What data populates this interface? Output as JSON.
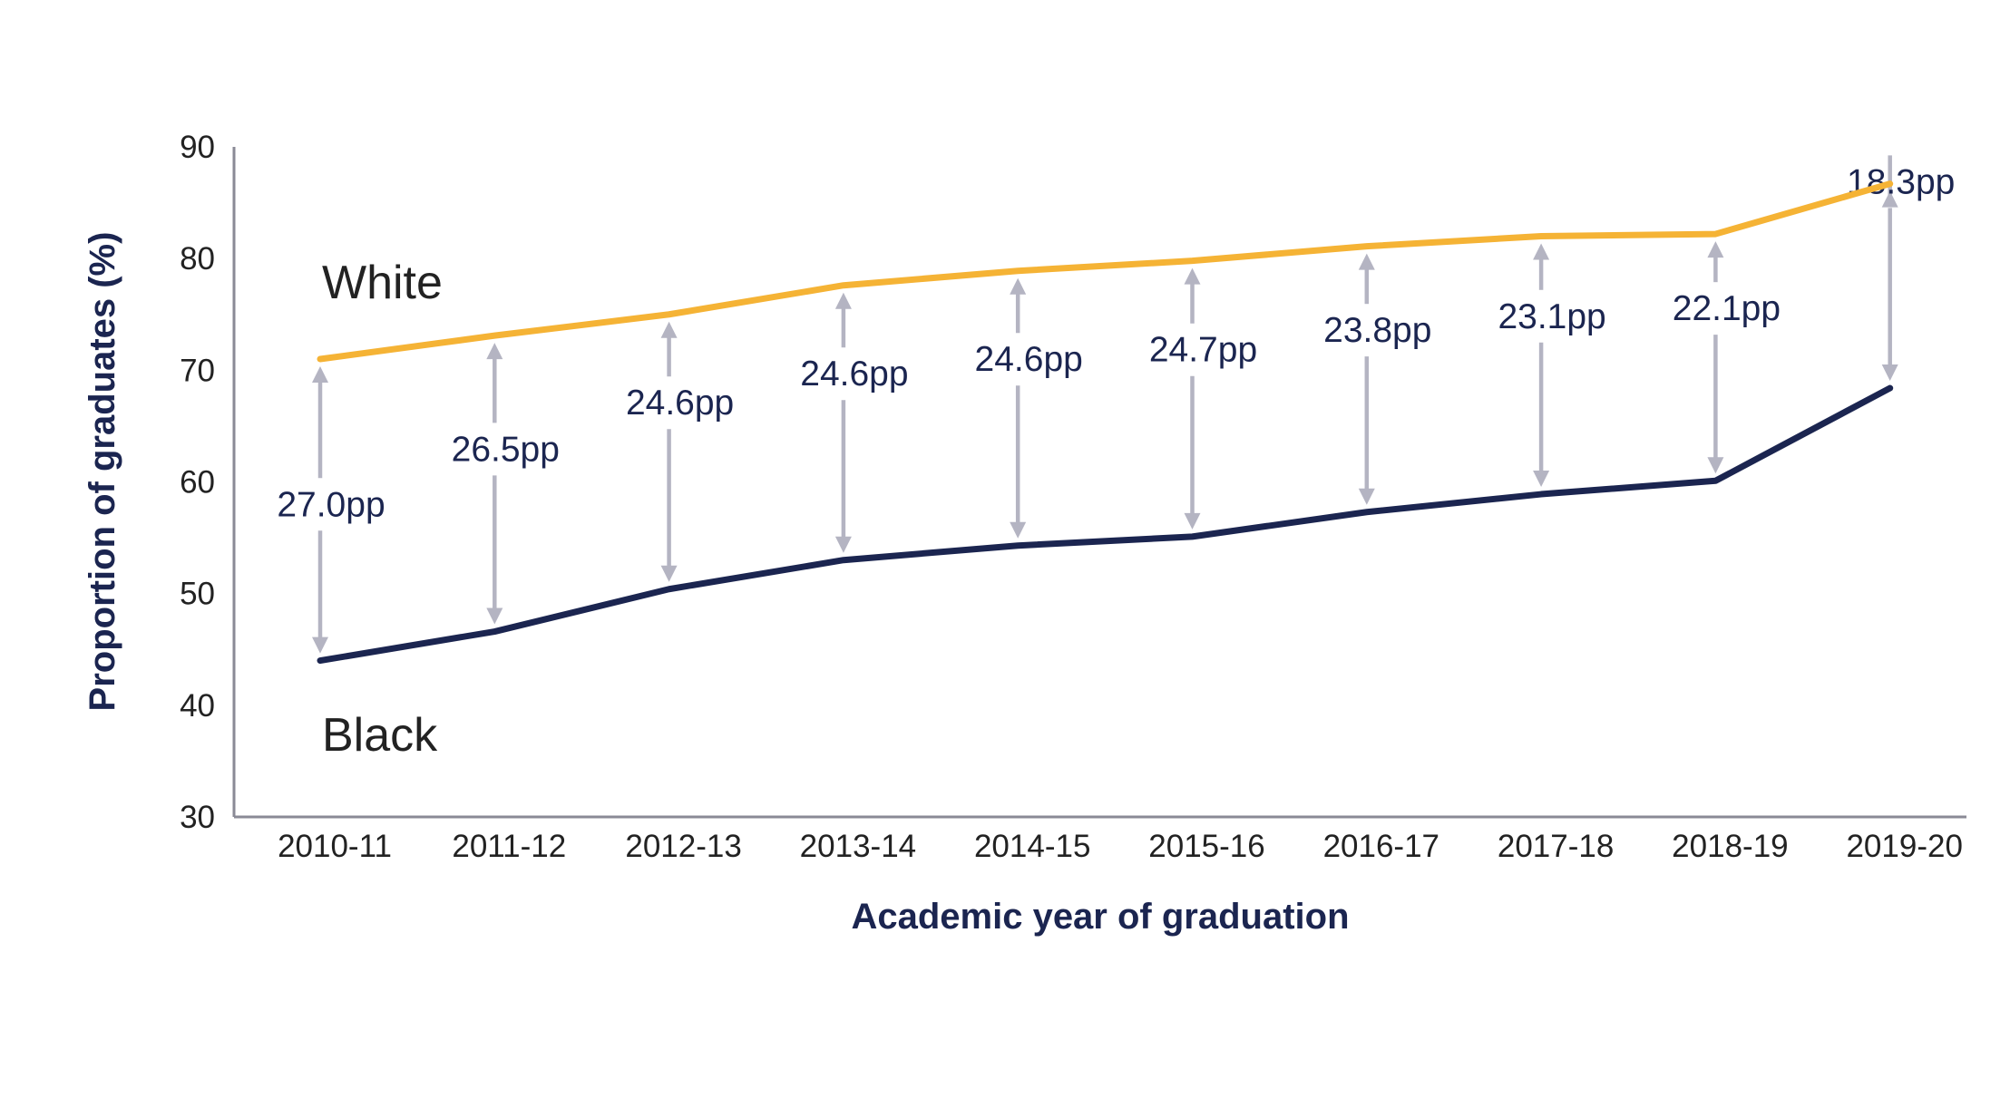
{
  "chart_data": {
    "type": "line",
    "xlabel": "Academic year of graduation",
    "ylabel": "Proportion of graduates (%)",
    "ylim": [
      30,
      90
    ],
    "yticks": [
      30,
      40,
      50,
      60,
      70,
      80,
      90
    ],
    "grid": false,
    "categories": [
      "2010-11",
      "2011-12",
      "2012-13",
      "2013-14",
      "2014-15",
      "2015-16",
      "2016-17",
      "2017-18",
      "2018-19",
      "2019-20"
    ],
    "series": [
      {
        "name": "White",
        "color": "#f5b335",
        "values": [
          71.0,
          73.1,
          75.0,
          77.6,
          78.9,
          79.8,
          81.1,
          82.0,
          82.2,
          86.7
        ]
      },
      {
        "name": "Black",
        "color": "#1b2550",
        "values": [
          44.0,
          46.6,
          50.4,
          53.0,
          54.3,
          55.1,
          57.3,
          58.9,
          60.1,
          68.4
        ]
      }
    ],
    "gap_labels": [
      "27.0pp",
      "26.5pp",
      "24.6pp",
      "24.6pp",
      "24.6pp",
      "24.7pp",
      "23.8pp",
      "23.1pp",
      "22.1pp",
      "18.3pp"
    ],
    "annotation_color": "#b4b4c2"
  }
}
